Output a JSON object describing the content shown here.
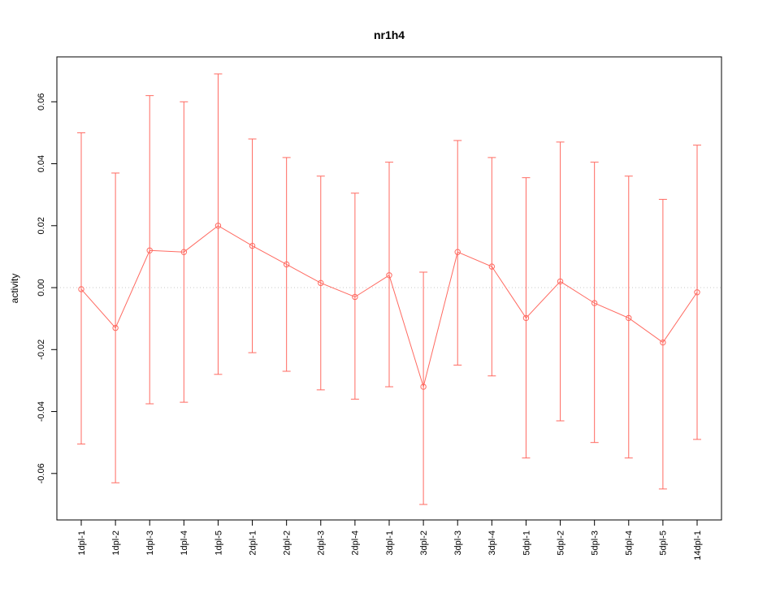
{
  "title": "nr1h4",
  "chart_data": {
    "type": "line",
    "title": "nr1h4",
    "xlabel": "",
    "ylabel": "activity",
    "legend_position": "none",
    "grid": "dotted horizontal line at y=0 only",
    "marker": "open-circle",
    "error_bars": true,
    "series_color": "#ff6a61",
    "zero_line_color": "#c8c8c8",
    "ylim": [
      -0.075,
      0.0745
    ],
    "yticks": [
      -0.06,
      -0.04,
      -0.02,
      0,
      0.02,
      0.04,
      0.06
    ],
    "ytick_labels": [
      "-0.06",
      "-0.04",
      "-0.02",
      "0.00",
      "0.02",
      "0.04",
      "0.06"
    ],
    "categories": [
      "1dpl-1",
      "1dpl-2",
      "1dpl-3",
      "1dpl-4",
      "1dpl-5",
      "2dpl-1",
      "2dpl-2",
      "2dpl-3",
      "2dpl-4",
      "3dpl-1",
      "3dpl-2",
      "3dpl-3",
      "3dpl-4",
      "5dpl-1",
      "5dpl-2",
      "5dpl-3",
      "5dpl-4",
      "5dpl-5",
      "14dpl-1"
    ],
    "series": [
      {
        "name": "activity",
        "values": [
          -0.0005,
          -0.013,
          0.012,
          0.0115,
          0.02,
          0.0135,
          0.0075,
          0.0015,
          -0.003,
          0.004,
          -0.032,
          0.0115,
          0.0068,
          -0.0098,
          0.002,
          -0.005,
          -0.0098,
          -0.0177,
          -0.0015
        ],
        "upper": [
          0.05,
          0.037,
          0.062,
          0.06,
          0.069,
          0.048,
          0.042,
          0.036,
          0.0305,
          0.0405,
          0.005,
          0.0475,
          0.042,
          0.0355,
          0.047,
          0.0405,
          0.036,
          0.0285,
          0.046
        ],
        "lower": [
          -0.0505,
          -0.063,
          -0.0375,
          -0.037,
          -0.028,
          -0.021,
          -0.027,
          -0.033,
          -0.036,
          -0.032,
          -0.07,
          -0.025,
          -0.0285,
          -0.055,
          -0.043,
          -0.05,
          -0.055,
          -0.065,
          -0.049
        ]
      }
    ]
  }
}
